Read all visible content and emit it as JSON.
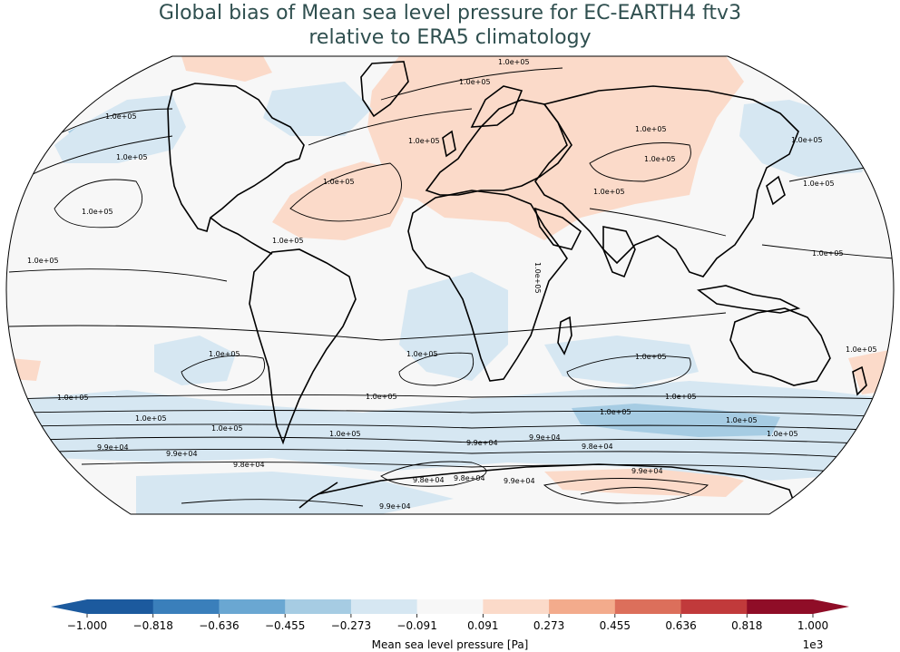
{
  "title_line1": "Global bias of Mean sea level pressure for EC-EARTH4 ftv3",
  "title_line2": "relative to ERA5 climatology",
  "colorbar": {
    "label": "Mean sea level pressure [Pa]",
    "multiplier": "1e3",
    "ticks": [
      "−1.000",
      "−0.818",
      "−0.636",
      "−0.455",
      "−0.273",
      "−0.091",
      "0.091",
      "0.273",
      "0.455",
      "0.636",
      "0.818",
      "1.000"
    ],
    "colors": [
      "#1c5a9e",
      "#3a7fbb",
      "#6aa7d2",
      "#a6cce3",
      "#d6e7f2",
      "#f7f7f7",
      "#fbdac9",
      "#f3ab8c",
      "#dc6f5b",
      "#c13a3b",
      "#8f0d27"
    ]
  },
  "map": {
    "ocean_background": "#f7f7f7",
    "contour_labels": [
      {
        "text": "1.0e+05"
      },
      {
        "text": "1.0e+05"
      },
      {
        "text": "1.0e+05"
      },
      {
        "text": "1.0e+05"
      },
      {
        "text": "1.0e+05"
      },
      {
        "text": "1.0e+05"
      },
      {
        "text": "1.0e+05"
      },
      {
        "text": "1.0e+05"
      },
      {
        "text": "1.0e+05"
      },
      {
        "text": "1.0e+05"
      },
      {
        "text": "1.0e+05"
      },
      {
        "text": "1.0e+05"
      },
      {
        "text": "1.0e+05"
      },
      {
        "text": "1.0e+05"
      },
      {
        "text": "1.0e+05"
      },
      {
        "text": "1.0e+05"
      },
      {
        "text": "1.0e+05"
      },
      {
        "text": "1.0e+05"
      },
      {
        "text": "1.0e+05"
      },
      {
        "text": "1.0e+05"
      },
      {
        "text": "1.0e+05"
      },
      {
        "text": "1.0e+05"
      },
      {
        "text": "1.0e+05"
      },
      {
        "text": "1.0e+05"
      },
      {
        "text": "9.9e+04"
      },
      {
        "text": "9.9e+04"
      },
      {
        "text": "9.9e+04"
      },
      {
        "text": "9.8e+04"
      },
      {
        "text": "9.8e+04"
      },
      {
        "text": "9.8e+04"
      },
      {
        "text": "9.8e+04"
      },
      {
        "text": "9.9e+04"
      },
      {
        "text": "9.9e+04"
      },
      {
        "text": "9.9e+04"
      },
      {
        "text": "1.0e+05"
      },
      {
        "text": "1.0e+05"
      },
      {
        "text": "1.0e+05"
      },
      {
        "text": "1.0e+05"
      },
      {
        "text": "9.9e+04"
      },
      {
        "text": "1.0e+05"
      }
    ]
  }
}
